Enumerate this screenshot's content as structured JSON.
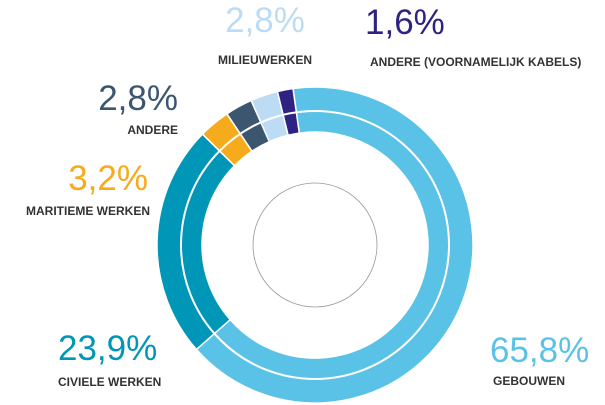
{
  "chart_data": {
    "type": "donut",
    "categories": [
      "GEBOUWEN",
      "CIVIELE WERKEN",
      "MARITIEME WERKEN",
      "ANDERE",
      "MILIEUWERKEN",
      "ANDERE (VOORNAMELIJK KABELS)"
    ],
    "values": [
      65.8,
      23.9,
      3.2,
      2.8,
      2.8,
      1.6
    ],
    "value_labels": [
      "65,8%",
      "23,9%",
      "3,2%",
      "2,8%",
      "2,8%",
      "1,6%"
    ],
    "colors": [
      "#5bc2e7",
      "#0096b8",
      "#f6ab1c",
      "#3d5670",
      "#bcdcf5",
      "#2e2382"
    ]
  }
}
